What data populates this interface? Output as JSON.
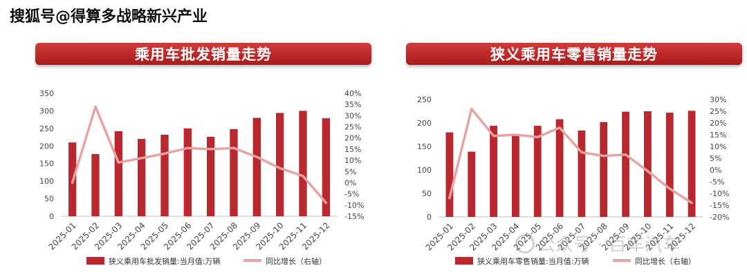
{
  "page": {
    "header_title": "搜狐号@得算多战略新兴产业",
    "watermark": "公众号 · 百车汽车"
  },
  "colors": {
    "bar": "#b8282e",
    "line": "#e9a2a2",
    "axis_text": "#444444",
    "banner": "#c62828"
  },
  "chart_data": [
    {
      "type": "bar+line",
      "title": "乘用车批发销量走势",
      "categories": [
        "2025-01",
        "2025-02",
        "2025-03",
        "2025-04",
        "2025-05",
        "2025-06",
        "2025-07",
        "2025-08",
        "2025-09",
        "2025-10",
        "2025-11",
        "2025-12"
      ],
      "series": [
        {
          "name": "狭义乘用车批发销量:当月值:万辆",
          "axis": "left",
          "kind": "bar",
          "values": [
            210,
            177,
            242,
            220,
            232,
            250,
            226,
            248,
            280,
            294,
            300,
            279
          ]
        },
        {
          "name": "同比增长（右轴）",
          "axis": "right",
          "kind": "line",
          "values": [
            0,
            34,
            9,
            11,
            13,
            15.5,
            15,
            15.5,
            11.5,
            6.5,
            3,
            -9
          ]
        }
      ],
      "ylim_left": [
        0,
        350
      ],
      "yticks_left": [
        "0",
        "50",
        "100",
        "150",
        "200",
        "250",
        "300",
        "350"
      ],
      "ylim_right": [
        -15,
        40
      ],
      "yticks_right": [
        "-15%",
        "-10%",
        "-5%",
        "0%",
        "5%",
        "10%",
        "15%",
        "20%",
        "25%",
        "30%",
        "35%",
        "40%"
      ]
    },
    {
      "type": "bar+line",
      "title": "狭义乘用车零售销量走势",
      "categories": [
        "2025-01",
        "2025-02",
        "2025-03",
        "2025-04",
        "2025-05",
        "2025-06",
        "2025-07",
        "2025-08",
        "2025-09",
        "2025-10",
        "2025-11",
        "2025-12"
      ],
      "series": [
        {
          "name": "狭义乘用车零售销量:当月值:万辆",
          "axis": "left",
          "kind": "bar",
          "values": [
            180,
            139,
            194,
            175,
            194,
            208,
            184,
            202,
            224,
            225,
            222,
            226
          ]
        },
        {
          "name": "同比增长（右轴）",
          "axis": "right",
          "kind": "line",
          "values": [
            -12,
            26,
            14.5,
            15,
            14,
            18,
            7.5,
            6,
            6.5,
            -0.5,
            -8,
            -14
          ]
        }
      ],
      "ylim_left": [
        0,
        250
      ],
      "yticks_left": [
        "0",
        "50",
        "100",
        "150",
        "200",
        "250"
      ],
      "ylim_right": [
        -20,
        30
      ],
      "yticks_right": [
        "-20%",
        "-15%",
        "-10%",
        "-5%",
        "0%",
        "5%",
        "10%",
        "15%",
        "20%",
        "25%",
        "30%"
      ]
    }
  ]
}
